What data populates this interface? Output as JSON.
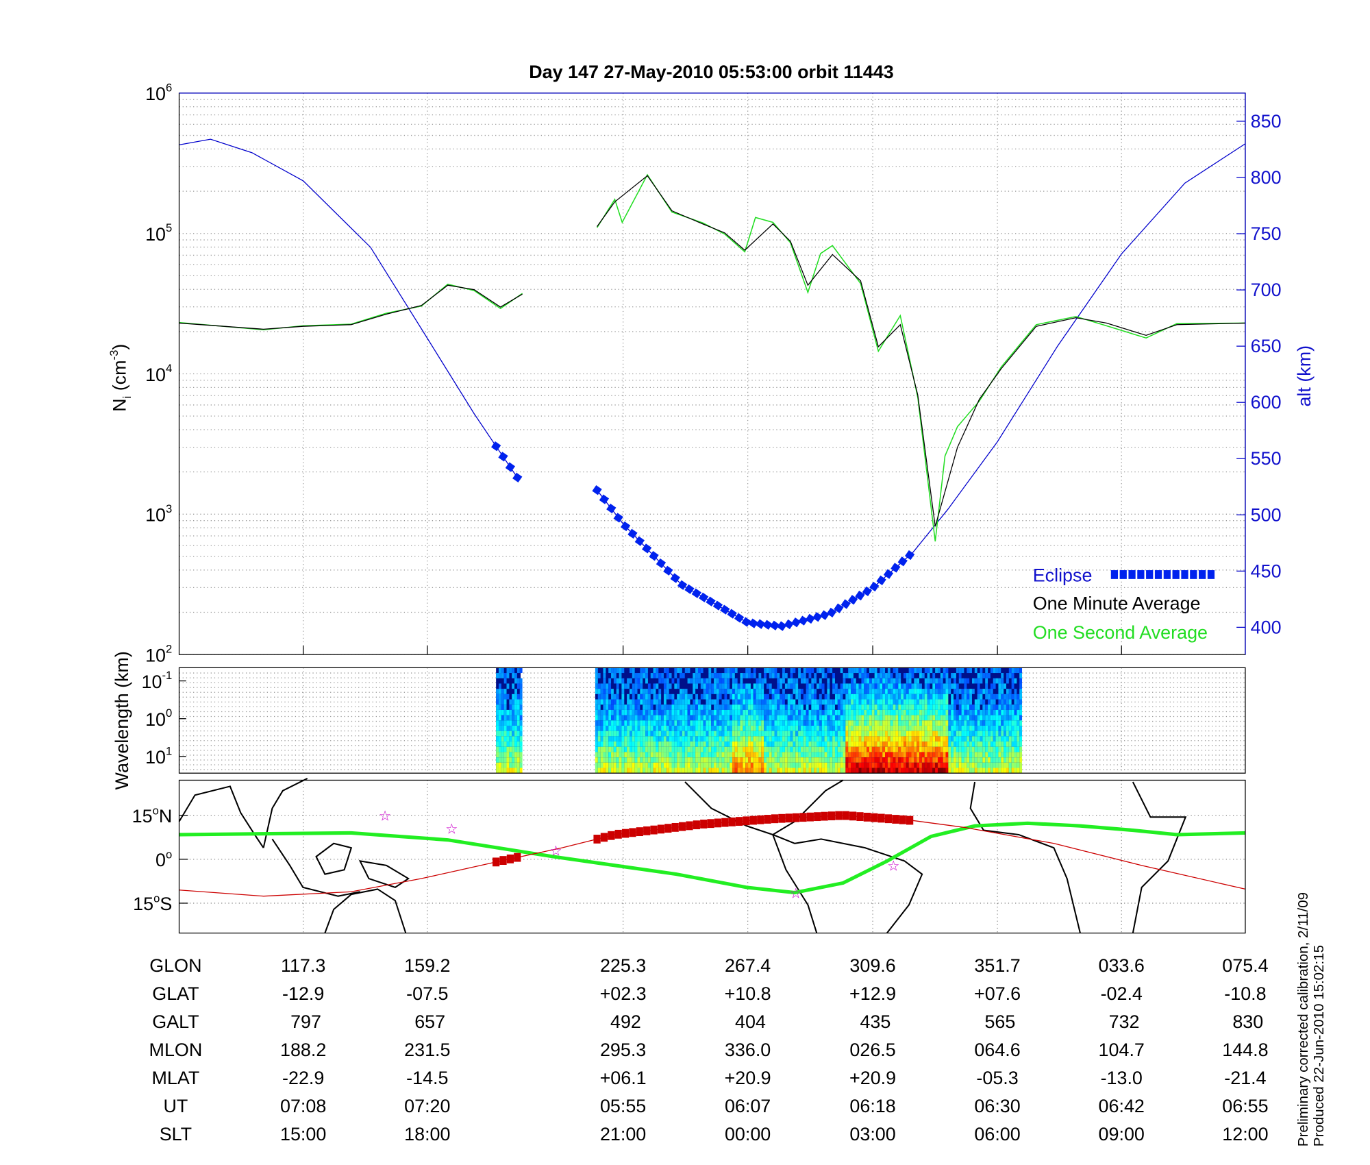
{
  "title": "Day 147  27-May-2010 05:53:00   orbit 11443",
  "note_line1": "Preliminary corrected calibration, 2/11/09",
  "note_line2": "Produced 22-Jun-2010 15:02:15",
  "colors": {
    "altitude": "#0000cc",
    "eclipse": "#0022ee",
    "one_minute": "#000000",
    "one_second": "#22dd22",
    "track": "#cc0000",
    "footprint": "#22ee22",
    "star": "#cc00cc",
    "axis_right": "#1111cc"
  },
  "chart_data": [
    {
      "type": "line",
      "panel": "density",
      "x_quantity": "GLON",
      "xlim": [
        75.4,
        435.4
      ],
      "ylabel": {
        "main": "N",
        "sub": "i",
        "unit_pre": " (cm",
        "unit_exp": "-3",
        "unit_post": ")"
      },
      "yscale": "log",
      "ylim": [
        100,
        1000000
      ],
      "yticks": [
        {
          "base": "10",
          "exp": "2"
        },
        {
          "base": "10",
          "exp": "3"
        },
        {
          "base": "10",
          "exp": "4"
        },
        {
          "base": "10",
          "exp": "5"
        },
        {
          "base": "10",
          "exp": "6"
        }
      ],
      "y2label": "alt (km)",
      "y2lim": [
        375,
        875
      ],
      "y2ticks": [
        "400",
        "450",
        "500",
        "550",
        "600",
        "650",
        "700",
        "750",
        "800",
        "850"
      ],
      "grid": true,
      "legend_position": "bottom-right",
      "legend": {
        "eclipse": "Eclipse",
        "one_minute": "One Minute Average",
        "one_second": "One Second Average"
      },
      "series": [
        {
          "name": "One Minute Average",
          "segments": [
            [
              [
                75.4,
                23000
              ],
              [
                103.9,
                20800
              ],
              [
                117.2,
                21800
              ],
              [
                133.5,
                22400
              ],
              [
                145.3,
                26600
              ],
              [
                157.2,
                30700
              ],
              [
                166.1,
                42800
              ],
              [
                175.0,
                39800
              ],
              [
                183.9,
                29900
              ],
              [
                191.3,
                37000
              ]
            ],
            [
              [
                216.5,
                112000
              ],
              [
                222.5,
                168000
              ],
              [
                233.5,
                258000
              ],
              [
                241.8,
                145000
              ],
              [
                252.2,
                117000
              ],
              [
                259.6,
                101000
              ],
              [
                266.4,
                76000
              ],
              [
                275.9,
                117000
              ],
              [
                281.8,
                88000
              ],
              [
                287.7,
                42800
              ],
              [
                296.0,
                70800
              ],
              [
                305.5,
                46000
              ],
              [
                311.5,
                15600
              ],
              [
                318.9,
                22400
              ],
              [
                324.8,
                7080
              ],
              [
                330.7,
                818
              ],
              [
                338.2,
                2990
              ],
              [
                345.6,
                6590
              ],
              [
                353.0,
                10900
              ],
              [
                364.8,
                21800
              ],
              [
                378.2,
                25100
              ],
              [
                388.5,
                23000
              ],
              [
                401.9,
                18800
              ],
              [
                412.3,
                22400
              ],
              [
                435.4,
                23000
              ]
            ]
          ]
        },
        {
          "name": "One Second Average",
          "segments": [
            [
              [
                75.4,
                23200
              ],
              [
                103.9,
                20600
              ],
              [
                117.2,
                22000
              ],
              [
                133.5,
                22600
              ],
              [
                145.3,
                27000
              ],
              [
                157.2,
                30400
              ],
              [
                166.1,
                43500
              ],
              [
                175.0,
                39200
              ],
              [
                183.9,
                29200
              ],
              [
                191.3,
                37400
              ]
            ],
            [
              [
                216.5,
                110000
              ],
              [
                222.5,
                175000
              ],
              [
                225.0,
                120000
              ],
              [
                233.5,
                262000
              ],
              [
                241.8,
                142000
              ],
              [
                252.2,
                119000
              ],
              [
                259.6,
                99000
              ],
              [
                266.4,
                74000
              ],
              [
                270.0,
                130000
              ],
              [
                275.9,
                120000
              ],
              [
                281.8,
                86000
              ],
              [
                287.7,
                38000
              ],
              [
                292.0,
                72000
              ],
              [
                296.0,
                82000
              ],
              [
                305.5,
                44000
              ],
              [
                311.5,
                14500
              ],
              [
                318.9,
                26000
              ],
              [
                324.8,
                6800
              ],
              [
                330.7,
                640
              ],
              [
                334.0,
                2600
              ],
              [
                338.2,
                4200
              ],
              [
                345.6,
                6400
              ],
              [
                353.0,
                11200
              ],
              [
                364.8,
                22400
              ],
              [
                378.2,
                25600
              ],
              [
                388.5,
                22000
              ],
              [
                401.9,
                18000
              ],
              [
                412.3,
                22800
              ],
              [
                435.4,
                23000
              ]
            ]
          ]
        }
      ],
      "altitude_km": [
        [
          75.4,
          829
        ],
        [
          86.0,
          834
        ],
        [
          100.0,
          822
        ],
        [
          117.3,
          797
        ],
        [
          140.0,
          738
        ],
        [
          159.2,
          657
        ],
        [
          175.0,
          590
        ],
        [
          182.4,
          561
        ],
        [
          189.9,
          532
        ],
        null,
        [
          216.5,
          522
        ],
        [
          225.3,
          492
        ],
        [
          245.0,
          438
        ],
        [
          267.4,
          404
        ],
        [
          278.8,
          401
        ],
        [
          295.0,
          412
        ],
        [
          309.6,
          435
        ],
        [
          323.3,
          467
        ],
        [
          335.0,
          505
        ],
        [
          351.7,
          565
        ],
        [
          372.0,
          650
        ],
        [
          393.6,
          732
        ],
        [
          415.0,
          795
        ],
        [
          435.4,
          830
        ]
      ],
      "eclipse_ranges": [
        [
          182.4,
          189.9
        ],
        [
          216.5,
          323.3
        ]
      ]
    },
    {
      "type": "heatmap",
      "panel": "spectrogram",
      "ylabel": "Wavelength (km)",
      "yscale": "log",
      "yticks": [
        {
          "base": "10",
          "exp": "-1"
        },
        {
          "base": "10",
          "exp": "0"
        },
        {
          "base": "10",
          "exp": "1"
        }
      ],
      "data_ranges": [
        [
          182.4,
          190.7
        ],
        [
          215.9,
          359.7
        ]
      ],
      "colormap": "jet"
    },
    {
      "type": "line",
      "panel": "map",
      "yticks": [
        {
          "deg": "15",
          "hem": "N"
        },
        {
          "deg": "0",
          "hem": ""
        },
        {
          "deg": "15",
          "hem": "S"
        }
      ],
      "ylim": [
        -25,
        27
      ],
      "track_lat": [
        [
          75.4,
          -10.5
        ],
        [
          103.9,
          -12.6
        ],
        [
          133.5,
          -11.1
        ],
        [
          157.2,
          -6.6
        ],
        [
          183.9,
          -0.6
        ],
        [
          204.7,
          3.9
        ],
        [
          222.5,
          8.4
        ],
        [
          252.2,
          12.0
        ],
        [
          275.9,
          13.8
        ],
        [
          299.6,
          15.0
        ],
        [
          323.3,
          13.2
        ],
        [
          341.1,
          10.8
        ],
        [
          370.8,
          5.4
        ],
        [
          400.4,
          -2.1
        ],
        [
          435.4,
          -10.2
        ]
      ],
      "footprint_lat": [
        [
          75.4,
          8.4
        ],
        [
          133.5,
          9.0
        ],
        [
          166.1,
          6.6
        ],
        [
          201.7,
          0.9
        ],
        [
          243.3,
          -5.1
        ],
        [
          267.0,
          -9.6
        ],
        [
          283.3,
          -11.4
        ],
        [
          299.6,
          -8.1
        ],
        [
          314.5,
          -0.6
        ],
        [
          329.3,
          7.8
        ],
        [
          344.1,
          11.4
        ],
        [
          361.9,
          12.3
        ],
        [
          379.7,
          11.4
        ],
        [
          397.5,
          9.9
        ],
        [
          412.3,
          8.4
        ],
        [
          435.4,
          9.0
        ]
      ],
      "stars": [
        [
          144.9,
          15.0
        ],
        [
          167.4,
          10.5
        ],
        [
          202.6,
          3.0
        ],
        [
          283.6,
          -11.4
        ],
        [
          316.6,
          -2.1
        ]
      ]
    }
  ],
  "table": {
    "row_labels": [
      "GLON",
      "GLAT",
      "GALT",
      "MLON",
      "MLAT",
      "UT",
      "SLT"
    ],
    "columns": [
      [
        "117.3",
        "-12.9",
        "797",
        "188.2",
        "-22.9",
        "07:08",
        "15:00"
      ],
      [
        "159.2",
        "-07.5",
        "657",
        "231.5",
        "-14.5",
        "07:20",
        "18:00"
      ],
      [
        "225.3",
        "+02.3",
        "492",
        "295.3",
        "+06.1",
        "05:55",
        "21:00"
      ],
      [
        "267.4",
        "+10.8",
        "404",
        "336.0",
        "+20.9",
        "06:07",
        "00:00"
      ],
      [
        "309.6",
        "+12.9",
        "435",
        "026.5",
        "+20.9",
        "06:18",
        "03:00"
      ],
      [
        "351.7",
        "+07.6",
        "565",
        "064.6",
        "-05.3",
        "06:30",
        "06:00"
      ],
      [
        "033.6",
        "-02.4",
        "732",
        "104.7",
        "-13.0",
        "06:42",
        "09:00"
      ],
      [
        "075.4",
        "-10.8",
        "830",
        "144.8",
        "-21.4",
        "06:55",
        "12:00"
      ]
    ],
    "column_glon": [
      117.3,
      159.2,
      225.3,
      267.4,
      309.6,
      351.7,
      393.6,
      435.4
    ]
  }
}
